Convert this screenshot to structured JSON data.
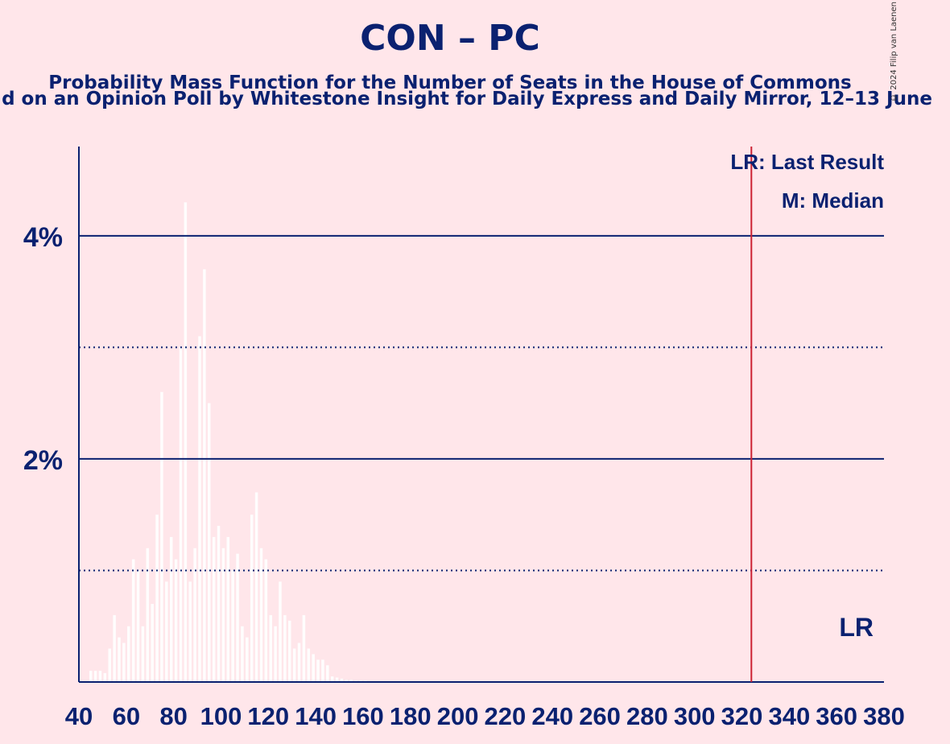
{
  "title": "CON – PC",
  "subtitle": "Probability Mass Function for the Number of Seats in the House of Commons",
  "subtitle2": "d on an Opinion Poll by Whitestone Insight for Daily Express and Daily Mirror, 12–13 June",
  "credit": "© 2024 Filip van Laenen",
  "chart_data": {
    "type": "bar",
    "x_ticks": [
      "40",
      "60",
      "80",
      "100",
      "120",
      "140",
      "160",
      "180",
      "200",
      "220",
      "240",
      "260",
      "280",
      "300",
      "320",
      "340",
      "360",
      "380"
    ],
    "y_ticks": [
      "2%",
      "4%"
    ],
    "xlim": [
      40,
      380
    ],
    "ylim": [
      0,
      4.8
    ],
    "grid": {
      "dotted": [
        1,
        3
      ],
      "solid": [
        2,
        4
      ]
    },
    "last_result": 324,
    "last_result_label": "LR",
    "legend": [
      "LR: Last Result",
      "M: Median"
    ],
    "legend_placement": "top-right",
    "x": [
      45,
      47,
      49,
      51,
      53,
      55,
      57,
      59,
      61,
      63,
      65,
      67,
      69,
      71,
      73,
      75,
      77,
      79,
      81,
      83,
      85,
      87,
      89,
      91,
      93,
      95,
      97,
      99,
      101,
      103,
      105,
      107,
      109,
      111,
      113,
      115,
      117,
      119,
      121,
      123,
      125,
      127,
      129,
      131,
      133,
      135,
      137,
      139,
      141,
      143,
      145,
      147,
      149,
      151,
      153,
      155,
      157,
      159,
      161
    ],
    "values": [
      0.1,
      0.1,
      0.1,
      0.08,
      0.3,
      0.6,
      0.4,
      0.35,
      0.5,
      1.1,
      1.0,
      0.5,
      1.2,
      0.7,
      1.5,
      2.6,
      0.9,
      1.3,
      1.1,
      3.0,
      4.3,
      0.9,
      1.2,
      3.1,
      3.7,
      2.5,
      1.3,
      1.4,
      1.2,
      1.3,
      1.0,
      1.15,
      0.5,
      0.4,
      1.5,
      1.7,
      1.2,
      1.1,
      0.6,
      0.5,
      0.9,
      0.6,
      0.55,
      0.3,
      0.35,
      0.6,
      0.3,
      0.25,
      0.2,
      0.2,
      0.15,
      0.05,
      0.04,
      0.03,
      0.02,
      0.02,
      0.01,
      0.01,
      0.01
    ],
    "accent": "#0a2170",
    "lr_color": "#cc2233"
  }
}
